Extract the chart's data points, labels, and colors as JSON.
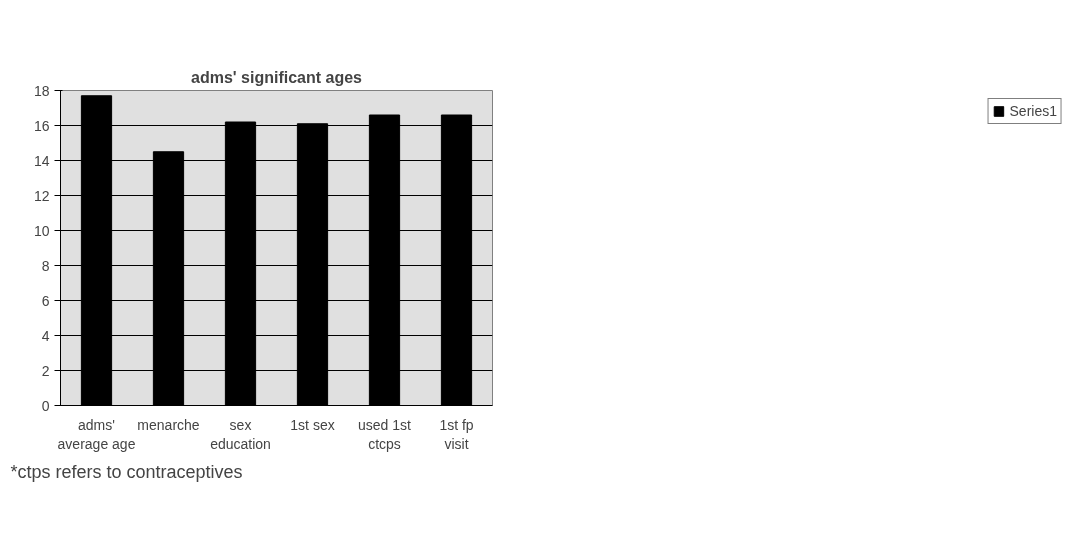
{
  "chart_data": {
    "type": "bar",
    "title": "adms' significant ages",
    "categories": [
      "adms' average age",
      "menarche",
      "sex education",
      "1st sex",
      "used 1st ctcps",
      "1st fp visit"
    ],
    "series": [
      {
        "name": "Series1",
        "color": "#000000",
        "values": [
          17.7,
          14.5,
          16.2,
          16.1,
          16.6,
          16.6
        ]
      }
    ],
    "ylim": [
      0,
      18
    ],
    "yticks": [
      0,
      2,
      4,
      6,
      8,
      10,
      12,
      14,
      16,
      18
    ],
    "grid": "y",
    "legend": "right",
    "annotations": [
      "*ctps refers to contraceptives"
    ]
  }
}
